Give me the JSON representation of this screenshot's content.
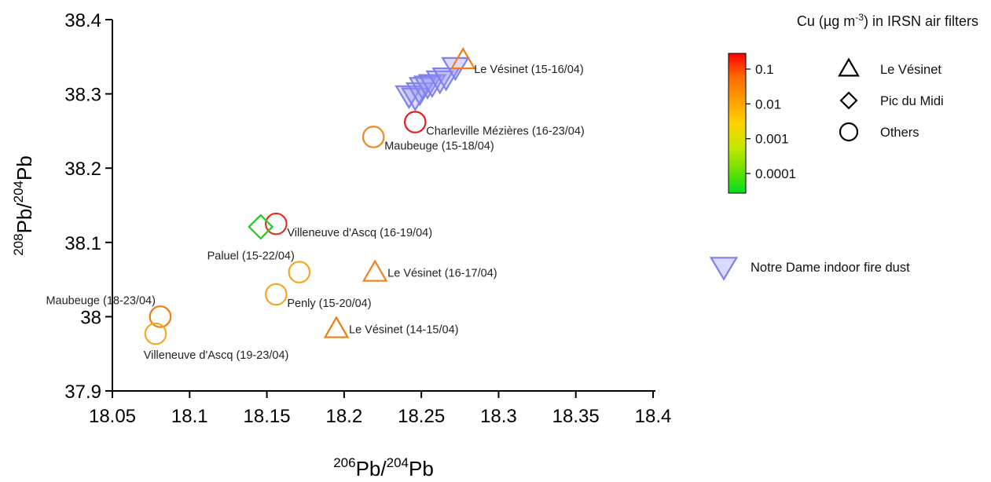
{
  "chart_data": {
    "type": "scatter",
    "xlabel": {
      "base": "Pb/",
      "sup1": "206",
      "sup2": "204",
      "tail": "Pb"
    },
    "ylabel": {
      "base": "Pb/",
      "sup1": "208",
      "sup2": "204",
      "tail": "Pb"
    },
    "xlim": [
      18.05,
      18.4
    ],
    "ylim": [
      37.9,
      38.4
    ],
    "x_ticks": [
      {
        "value": 18.05,
        "label": "18.05"
      },
      {
        "value": 18.1,
        "label": "18.1"
      },
      {
        "value": 18.15,
        "label": "18.15"
      },
      {
        "value": 18.2,
        "label": "18.2"
      },
      {
        "value": 18.25,
        "label": "18.25"
      },
      {
        "value": 18.3,
        "label": "18.3"
      },
      {
        "value": 18.35,
        "label": "18.35"
      },
      {
        "value": 18.4,
        "label": "18.4"
      }
    ],
    "y_ticks": [
      {
        "value": 37.9,
        "label": "37.9"
      },
      {
        "value": 38.0,
        "label": "38"
      },
      {
        "value": 38.1,
        "label": "38.1"
      },
      {
        "value": 38.2,
        "label": "38.2"
      },
      {
        "value": 38.3,
        "label": "38.3"
      },
      {
        "value": 38.4,
        "label": "38.4"
      }
    ],
    "grid": false,
    "series": [
      {
        "name": "Notre Dame indoor fire dust",
        "marker": "inverted-triangle",
        "color": "#8080ee",
        "points": [
          {
            "x": 18.242,
            "y": 38.298
          },
          {
            "x": 18.246,
            "y": 38.295
          },
          {
            "x": 18.249,
            "y": 38.302
          },
          {
            "x": 18.251,
            "y": 38.309
          },
          {
            "x": 18.254,
            "y": 38.311
          },
          {
            "x": 18.257,
            "y": 38.313
          },
          {
            "x": 18.262,
            "y": 38.318
          },
          {
            "x": 18.266,
            "y": 38.322
          },
          {
            "x": 18.272,
            "y": 38.336
          }
        ]
      },
      {
        "name": "IRSN air filters",
        "points": [
          {
            "x": 18.277,
            "y": 38.345,
            "marker": "triangle",
            "color": "#f07c12",
            "label": "Le Vésinet (15-16/04)",
            "label_anchor": "right-below"
          },
          {
            "x": 18.246,
            "y": 38.262,
            "marker": "circle",
            "color": "#e41f1f",
            "label": "Charleville Mézières (16-23/04)",
            "label_anchor": "right-below"
          },
          {
            "x": 18.219,
            "y": 38.242,
            "marker": "circle",
            "color": "#f08822",
            "label": "Maubeuge (15-18/04)",
            "label_anchor": "right-below"
          },
          {
            "x": 18.156,
            "y": 38.125,
            "marker": "circle",
            "color": "#e62e1c",
            "label": "Villeneuve d'Ascq (16-19/04)",
            "label_anchor": "right-below"
          },
          {
            "x": 18.146,
            "y": 38.121,
            "marker": "diamond",
            "color": "#22cc22",
            "label": "",
            "label_anchor": ""
          },
          {
            "x": 18.171,
            "y": 38.06,
            "marker": "circle",
            "color": "#f5a623",
            "label": "Paluel (15-22/04)",
            "label_anchor": "left-above"
          },
          {
            "x": 18.22,
            "y": 38.059,
            "marker": "triangle",
            "color": "#f08020",
            "label": "Le Vésinet (16-17/04)",
            "label_anchor": "right"
          },
          {
            "x": 18.156,
            "y": 38.03,
            "marker": "circle",
            "color": "#f5a623",
            "label": "Penly (15-20/04)",
            "label_anchor": "right-below"
          },
          {
            "x": 18.081,
            "y": 38.0,
            "marker": "circle",
            "color": "#f07c12",
            "label": "Maubeuge (18-23/04)",
            "label_anchor": "left-above"
          },
          {
            "x": 18.195,
            "y": 37.983,
            "marker": "triangle",
            "color": "#f07c12",
            "label": "Le Vésinet (14-15/04)",
            "label_anchor": "right"
          },
          {
            "x": 18.078,
            "y": 37.977,
            "marker": "circle",
            "color": "#f5a623",
            "label": "Villeneuve d'Ascq (19-23/04)",
            "label_anchor": "below"
          }
        ]
      }
    ],
    "legend": {
      "title": "Cu (µg m",
      "title_sup": "-3",
      "title_tail": ") in IRSN air filters",
      "placement": "right",
      "colorbar": {
        "colors": [
          "#ff0000",
          "#ff6a00",
          "#ff9e00",
          "#ffd200",
          "#c9e600",
          "#6fe000",
          "#00dd20"
        ],
        "ticks": [
          {
            "value": 0.1,
            "label": "0.1"
          },
          {
            "value": 0.01,
            "label": "0.01"
          },
          {
            "value": 0.001,
            "label": "0.001"
          },
          {
            "value": 0.0001,
            "label": "0.0001"
          }
        ]
      },
      "shape_items": [
        {
          "marker": "triangle",
          "label": "Le Vésinet"
        },
        {
          "marker": "diamond",
          "label": "Pic du Midi"
        },
        {
          "marker": "circle",
          "label": "Others"
        }
      ],
      "series_item": {
        "marker": "inverted-triangle",
        "color": "#8080ee",
        "label": "Notre Dame indoor fire dust"
      }
    }
  }
}
